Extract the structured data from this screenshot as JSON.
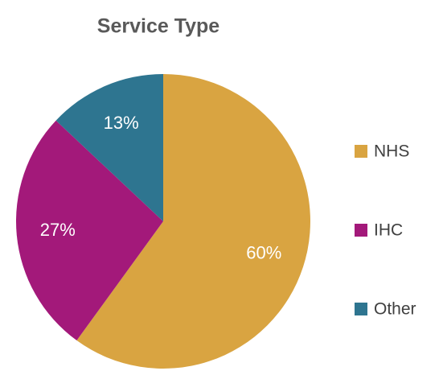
{
  "chart_data": {
    "type": "pie",
    "title": "Service Type",
    "categories": [
      "NHS",
      "IHC",
      "Other"
    ],
    "values": [
      60,
      27,
      13
    ],
    "value_labels": [
      "60%",
      "27%",
      "13%"
    ],
    "colors": [
      "#d9a441",
      "#a3197a",
      "#2e7590"
    ],
    "legend": "right"
  }
}
